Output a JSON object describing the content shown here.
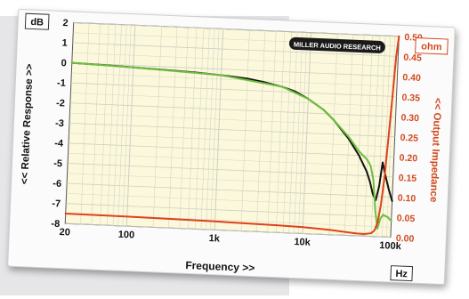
{
  "chart_data": {
    "type": "line",
    "header_left": "dB",
    "brand": "MILLER AUDIO RESEARCH",
    "xlabel": "Frequency >>",
    "x_unit": "Hz",
    "ylabel_left": "<< Relative Response >>",
    "ylabel_right": "<< Output Impedance",
    "y_unit_right": "ohm",
    "x_scale": "log",
    "xlim": [
      20,
      100000
    ],
    "ylim_left": [
      -8,
      2
    ],
    "ylim_right": [
      0,
      0.5
    ],
    "x_ticks": [
      {
        "value": 20,
        "label": "20"
      },
      {
        "value": 100,
        "label": "100"
      },
      {
        "value": 1000,
        "label": "1k"
      },
      {
        "value": 10000,
        "label": "10k"
      },
      {
        "value": 100000,
        "label": "100k"
      }
    ],
    "y_ticks_left": [
      {
        "value": 2,
        "label": "2"
      },
      {
        "value": 1,
        "label": "1"
      },
      {
        "value": 0,
        "label": "0"
      },
      {
        "value": -1,
        "label": "-1"
      },
      {
        "value": -2,
        "label": "-2"
      },
      {
        "value": -3,
        "label": "-3"
      },
      {
        "value": -4,
        "label": "-4"
      },
      {
        "value": -5,
        "label": "-5"
      },
      {
        "value": -6,
        "label": "-6"
      },
      {
        "value": -7,
        "label": "-7"
      },
      {
        "value": -8,
        "label": "-8"
      }
    ],
    "y_ticks_right": [
      {
        "value": 0.5,
        "label": "0.50"
      },
      {
        "value": 0.45,
        "label": "0.45"
      },
      {
        "value": 0.4,
        "label": "0.40"
      },
      {
        "value": 0.35,
        "label": "0.35"
      },
      {
        "value": 0.3,
        "label": "0.30"
      },
      {
        "value": 0.25,
        "label": "0.25"
      },
      {
        "value": 0.2,
        "label": "0.20"
      },
      {
        "value": 0.15,
        "label": "0.15"
      },
      {
        "value": 0.1,
        "label": "0.10"
      },
      {
        "value": 0.05,
        "label": "0.05"
      },
      {
        "value": 0,
        "label": "0.00"
      }
    ],
    "grid": true,
    "colors": {
      "plot_bg": "#fbf8dc",
      "grid": "#cfcfc4",
      "black_series": "#111111",
      "green_series": "#6fbf3f",
      "red_series": "#e0401a",
      "right_axis": "#d24a1e"
    },
    "series": [
      {
        "axis": "left",
        "color": "#111111",
        "x": [
          20,
          50,
          100,
          200,
          500,
          1000,
          2000,
          3000,
          5000,
          7000,
          10000,
          15000,
          20000,
          30000,
          40000,
          50000,
          55000,
          60000,
          65000,
          70000,
          75000,
          80000,
          90000,
          100000
        ],
        "y": [
          0,
          -0.05,
          -0.1,
          -0.15,
          -0.22,
          -0.3,
          -0.42,
          -0.55,
          -0.75,
          -0.95,
          -1.3,
          -1.8,
          -2.3,
          -3.2,
          -4.0,
          -4.8,
          -5.3,
          -5.9,
          -6.2,
          -5.5,
          -4.3,
          -4.8,
          -5.6,
          -6.2
        ]
      },
      {
        "axis": "left",
        "color": "#6fbf3f",
        "x": [
          20,
          100,
          1000,
          5000,
          10000,
          15000,
          20000,
          30000,
          40000,
          50000,
          55000,
          60000,
          65000,
          70000,
          75000,
          80000,
          90000,
          100000
        ],
        "y": [
          0,
          -0.1,
          -0.3,
          -0.75,
          -1.3,
          -1.8,
          -2.3,
          -3.1,
          -3.8,
          -4.2,
          -4.5,
          -5.2,
          -6.7,
          -7.6,
          -7.1,
          -6.9,
          -7.0,
          -7.2
        ]
      },
      {
        "axis": "right",
        "color": "#e0401a",
        "x": [
          20,
          100,
          500,
          1000,
          5000,
          10000,
          20000,
          40000,
          50000,
          60000,
          65000,
          70000,
          75000,
          80000,
          85000,
          90000,
          95000,
          100000
        ],
        "y": [
          0.025,
          0.024,
          0.022,
          0.021,
          0.018,
          0.016,
          0.012,
          0.006,
          0.005,
          0.008,
          0.015,
          0.035,
          0.08,
          0.15,
          0.25,
          0.35,
          0.45,
          0.5
        ]
      }
    ]
  }
}
